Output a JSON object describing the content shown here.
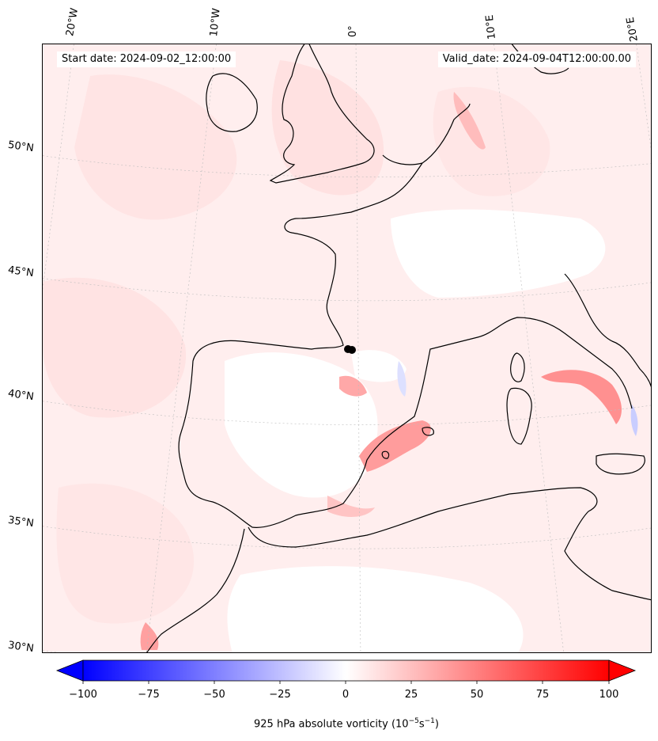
{
  "header": {
    "start_date": "Start date: 2024-09-02_12:00:00",
    "valid_date": "Valid_date: 2024-09-04T12:00:00.00"
  },
  "map": {
    "longitude_labels": [
      "20°W",
      "10°W",
      "0°",
      "10°E",
      "20°E"
    ],
    "latitude_labels": [
      "50°N",
      "45°N",
      "40°N",
      "35°N",
      "30°N"
    ],
    "field": "925 hPa absolute vorticity",
    "marker_color": "#000000"
  },
  "colorbar": {
    "ticks": [
      "−100",
      "−75",
      "−50",
      "−25",
      "0",
      "25",
      "50",
      "75",
      "100"
    ],
    "label_prefix": "925 hPa absolute vorticity (10",
    "label_exp1": "−5",
    "label_mid": "s",
    "label_exp2": "−1",
    "label_suffix": ")",
    "min": -100,
    "max": 100,
    "colors": {
      "negative": "#0000ff",
      "zero": "#ffffff",
      "positive": "#ff0000"
    }
  }
}
